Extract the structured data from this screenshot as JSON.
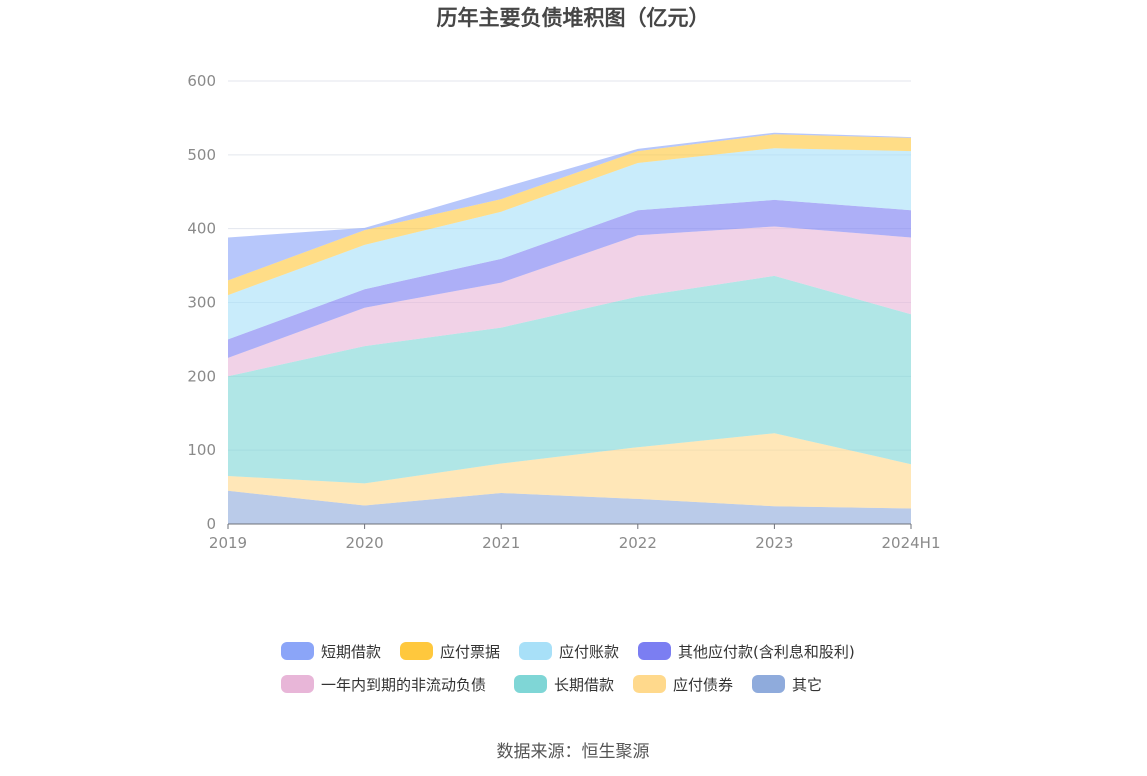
{
  "chart_data": {
    "type": "area",
    "title": "历年主要负债堆积图（亿元）",
    "x": [
      "2019",
      "2020",
      "2021",
      "2022",
      "2023",
      "2024H1"
    ],
    "ylim": [
      0,
      600
    ],
    "yticks": [
      0,
      100,
      200,
      300,
      400,
      500,
      600
    ],
    "grid": true,
    "legend_position": "bottom",
    "stacked": true,
    "series": [
      {
        "name": "其它",
        "color": "#8fabdc",
        "values": [
          45,
          25,
          42,
          34,
          24,
          21
        ]
      },
      {
        "name": "应付债券",
        "color": "#ffd98c",
        "values": [
          20,
          30,
          40,
          70,
          99,
          60
        ]
      },
      {
        "name": "长期借款",
        "color": "#7fd6d6",
        "values": [
          135,
          186,
          184,
          204,
          213,
          203
        ]
      },
      {
        "name": "一年内到期的非流动负债",
        "color": "#e8b6d8",
        "values": [
          25,
          52,
          61,
          83,
          67,
          104
        ]
      },
      {
        "name": "其他应付款(含利息和股利)",
        "color": "#7b7ef2",
        "values": [
          25,
          25,
          32,
          34,
          36,
          37
        ]
      },
      {
        "name": "应付账款",
        "color": "#a8e0f8",
        "values": [
          60,
          60,
          64,
          64,
          70,
          80
        ]
      },
      {
        "name": "应付票据",
        "color": "#ffc83d",
        "values": [
          20,
          20,
          17,
          16,
          19,
          18
        ]
      },
      {
        "name": "短期借款",
        "color": "#8ba5f8",
        "values": [
          58,
          3,
          15,
          3,
          2,
          1
        ]
      }
    ],
    "legend_order": [
      "短期借款",
      "应付票据",
      "应付账款",
      "其他应付款(含利息和股利)",
      "一年内到期的非流动负债",
      "长期借款",
      "应付债券",
      "其它"
    ]
  },
  "source": "数据来源：恒生聚源"
}
